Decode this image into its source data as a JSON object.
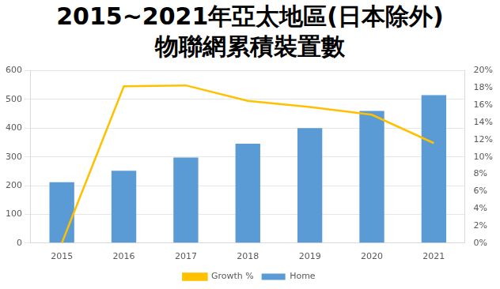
{
  "chart_data": {
    "type": "bar",
    "title": [
      "2015~2021年亞太地區(日本除外)",
      "物聯網累積裝置數"
    ],
    "categories": [
      "2015",
      "2016",
      "2017",
      "2018",
      "2019",
      "2020",
      "2021"
    ],
    "series": [
      {
        "name": "Home",
        "type": "bar",
        "color": "#5b9bd5",
        "values": [
          212,
          252,
          298,
          346,
          400,
          460,
          515
        ]
      },
      {
        "name": "Growth %",
        "type": "line",
        "color": "#ffc000",
        "axis": "y2",
        "marker": "none",
        "line_style": "solid",
        "values": [
          0,
          18.2,
          18.3,
          16.5,
          15.8,
          14.9,
          11.6
        ]
      }
    ],
    "ylim": [
      0,
      600
    ],
    "yticks": [
      0,
      100,
      200,
      300,
      400,
      500,
      600
    ],
    "y2lim": [
      0,
      20
    ],
    "y2ticks": [
      {
        "value": 0,
        "label": "0%"
      },
      {
        "value": 2,
        "label": "2%"
      },
      {
        "value": 4,
        "label": "4%"
      },
      {
        "value": 6,
        "label": "6%"
      },
      {
        "value": 8,
        "label": "8%"
      },
      {
        "value": 10,
        "label": "10%"
      },
      {
        "value": 12,
        "label": "12%"
      },
      {
        "value": 14,
        "label": "14%"
      },
      {
        "value": 16,
        "label": "16%"
      },
      {
        "value": 18,
        "label": "18%"
      },
      {
        "value": 20,
        "label": "20%"
      }
    ],
    "grid": true,
    "legend": "bottom"
  }
}
